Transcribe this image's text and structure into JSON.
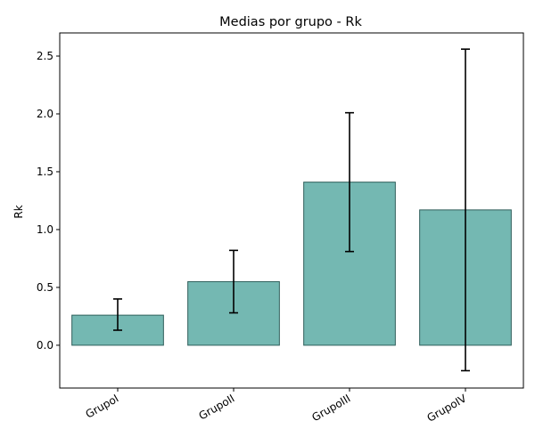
{
  "chart_data": {
    "type": "bar",
    "title": "Medias por grupo - Rk",
    "xlabel": "",
    "ylabel": "Rk",
    "categories": [
      "GrupoI",
      "GrupoII",
      "GrupoIII",
      "GrupoIV"
    ],
    "values": [
      0.26,
      0.55,
      1.41,
      1.17
    ],
    "error_low": [
      0.13,
      0.28,
      0.81,
      -0.22
    ],
    "error_high": [
      0.4,
      0.82,
      2.01,
      2.56
    ],
    "ylim": [
      -0.37,
      2.7
    ],
    "yticks": [
      0.0,
      0.5,
      1.0,
      1.5,
      2.0,
      2.5
    ],
    "ytick_labels": [
      "0.0",
      "0.5",
      "1.0",
      "1.5",
      "2.0",
      "2.5"
    ],
    "grid": false,
    "colors": {
      "bar_fill": "#74b8b2",
      "bar_edge": "#2f5f5b",
      "error_bar": "#000000"
    }
  }
}
